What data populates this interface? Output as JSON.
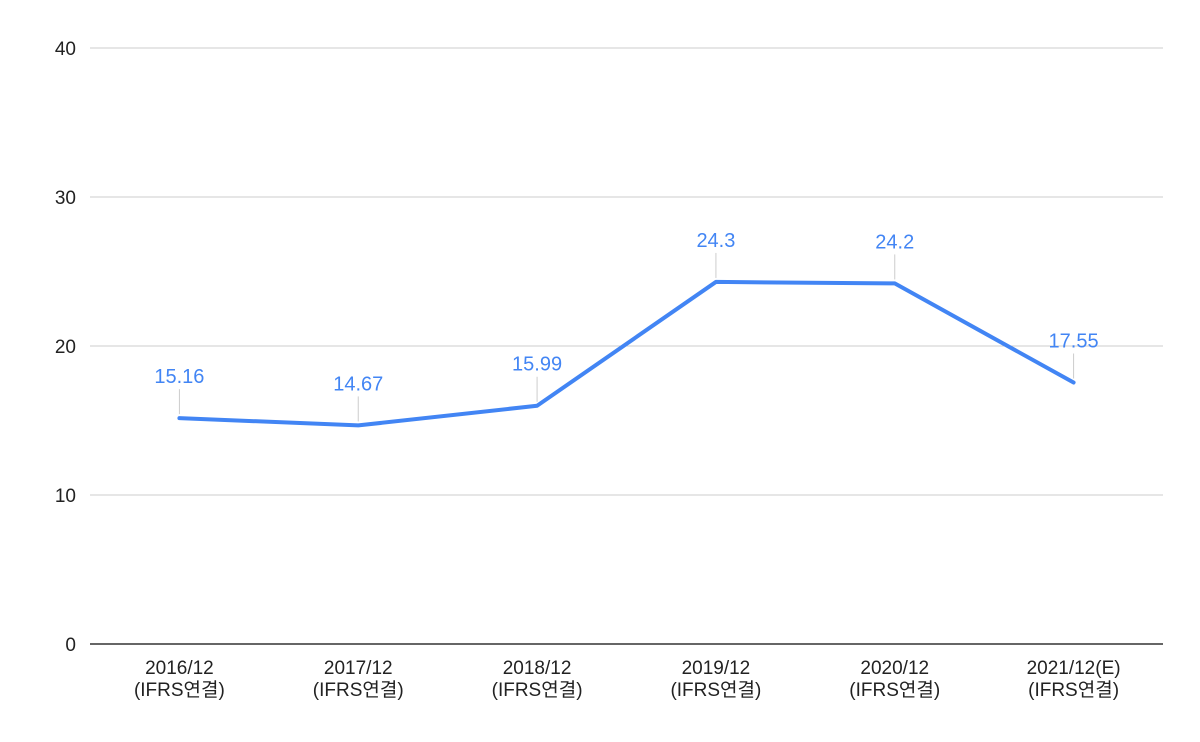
{
  "chart_data": {
    "type": "line",
    "categories": [
      [
        "2016/12",
        "(IFRS연결)"
      ],
      [
        "2017/12",
        "(IFRS연결)"
      ],
      [
        "2018/12",
        "(IFRS연결)"
      ],
      [
        "2019/12",
        "(IFRS연결)"
      ],
      [
        "2020/12",
        "(IFRS연결)"
      ],
      [
        "2021/12(E)",
        "(IFRS연결)"
      ]
    ],
    "series": [
      {
        "values": [
          15.16,
          14.67,
          15.99,
          24.3,
          24.2,
          17.55
        ],
        "color": "#4285f4"
      }
    ],
    "data_labels": [
      "15.16",
      "14.67",
      "15.99",
      "24.3",
      "24.2",
      "17.55"
    ],
    "ylim": [
      0,
      40
    ],
    "yticks": [
      "0",
      "10",
      "20",
      "30",
      "40"
    ],
    "grid": true,
    "legend": "none",
    "gridline_color": "#cccccc",
    "axis_color": "#333333"
  }
}
